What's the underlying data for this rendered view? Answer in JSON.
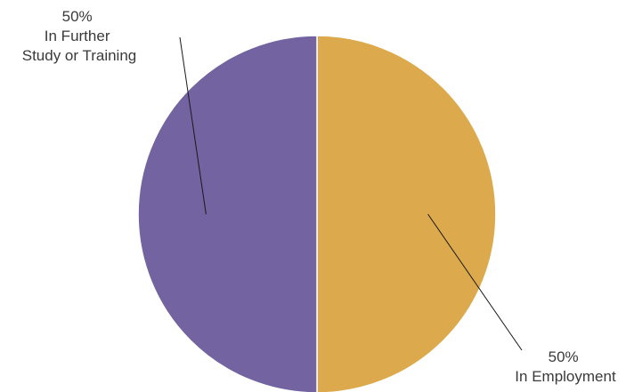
{
  "chart_data": {
    "type": "pie",
    "title": "",
    "start_angle_deg": 0,
    "direction": "clockwise",
    "slices": [
      {
        "value": 50,
        "value_label": "50%",
        "category_lines": [
          "In Employment"
        ],
        "color": "#DCAA4C"
      },
      {
        "value": 50,
        "value_label": "50%",
        "category_lines": [
          "In Further",
          "Study or Training"
        ],
        "color": "#7363A1"
      }
    ],
    "legend": "none",
    "label_style": "outside-with-leader-lines",
    "slice_separator_color": "#ffffff"
  }
}
